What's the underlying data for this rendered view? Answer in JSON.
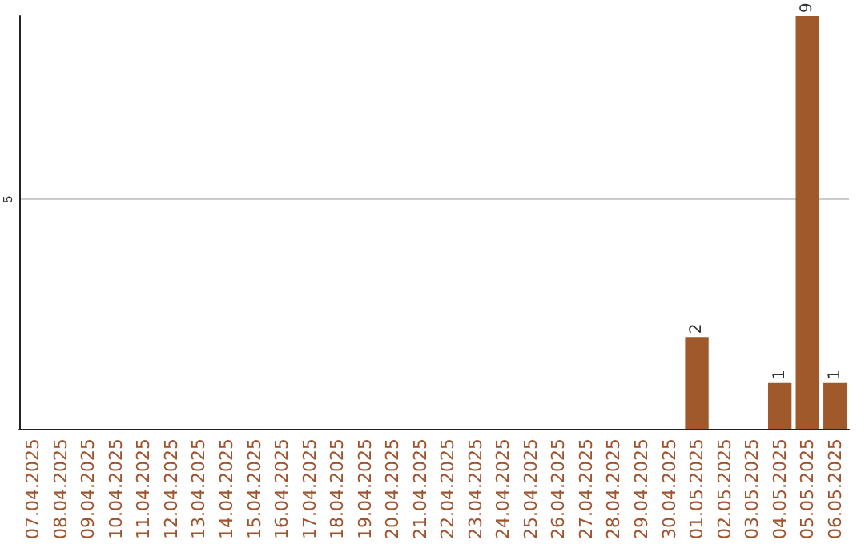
{
  "chart_data": {
    "type": "bar",
    "categories": [
      "07.04.2025",
      "08.04.2025",
      "09.04.2025",
      "10.04.2025",
      "11.04.2025",
      "12.04.2025",
      "13.04.2025",
      "14.04.2025",
      "15.04.2025",
      "16.04.2025",
      "17.04.2025",
      "18.04.2025",
      "19.04.2025",
      "20.04.2025",
      "21.04.2025",
      "22.04.2025",
      "23.04.2025",
      "24.04.2025",
      "25.04.2025",
      "26.04.2025",
      "27.04.2025",
      "28.04.2025",
      "29.04.2025",
      "30.04.2025",
      "01.05.2025",
      "02.05.2025",
      "03.05.2025",
      "04.05.2025",
      "05.05.2025",
      "06.05.2025"
    ],
    "values": [
      null,
      null,
      null,
      null,
      null,
      null,
      null,
      null,
      null,
      null,
      null,
      null,
      null,
      null,
      null,
      null,
      null,
      null,
      null,
      null,
      null,
      null,
      null,
      null,
      2,
      null,
      null,
      1,
      9,
      1
    ],
    "color": "#a0592a",
    "ylim": [
      0,
      9
    ],
    "yticks": [
      5
    ],
    "grid": "y",
    "data_labels": true
  }
}
